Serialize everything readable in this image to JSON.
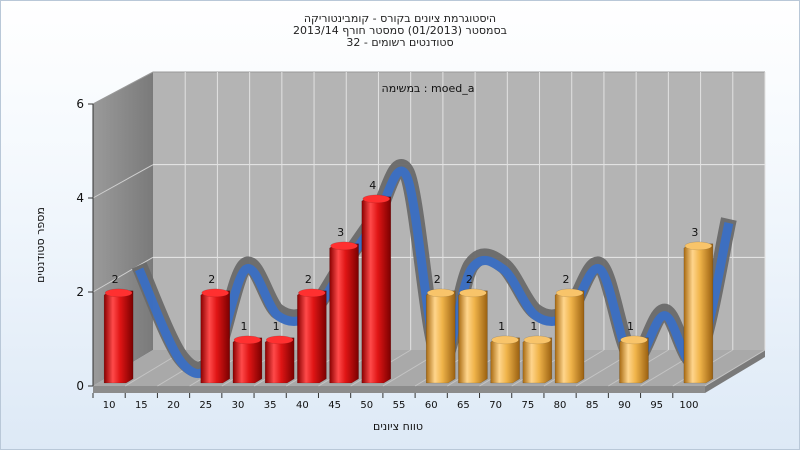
{
  "chart_data": {
    "type": "bar",
    "title_lines": [
      "היסטוגרמת ציונים בקורס - קומבינטוריקה",
      "בסמסטר  (01/2013)  סמסטר חורף 2013/14",
      "סטודנטים רשומים - 32"
    ],
    "annotation": "במשימה : moed_a",
    "xlabel": "טווח ציונים",
    "ylabel": "מספר סטודנטים",
    "ylim": [
      0,
      6
    ],
    "y_ticks": [
      "0",
      "2",
      "4",
      "6"
    ],
    "grid": true,
    "categories": [
      "10",
      "15",
      "20",
      "25",
      "30",
      "35",
      "40",
      "45",
      "50",
      "55",
      "60",
      "65",
      "70",
      "75",
      "80",
      "85",
      "90",
      "95",
      "100"
    ],
    "values": [
      2,
      0,
      0,
      2,
      1,
      1,
      2,
      3,
      4,
      0,
      2,
      2,
      1,
      1,
      2,
      0,
      1,
      0,
      3
    ],
    "colors": {
      "failing": "#e01515",
      "passing": "#f0b44a",
      "trend_front": "#3a6fc4",
      "trend_back": "#6a6a6a"
    }
  }
}
